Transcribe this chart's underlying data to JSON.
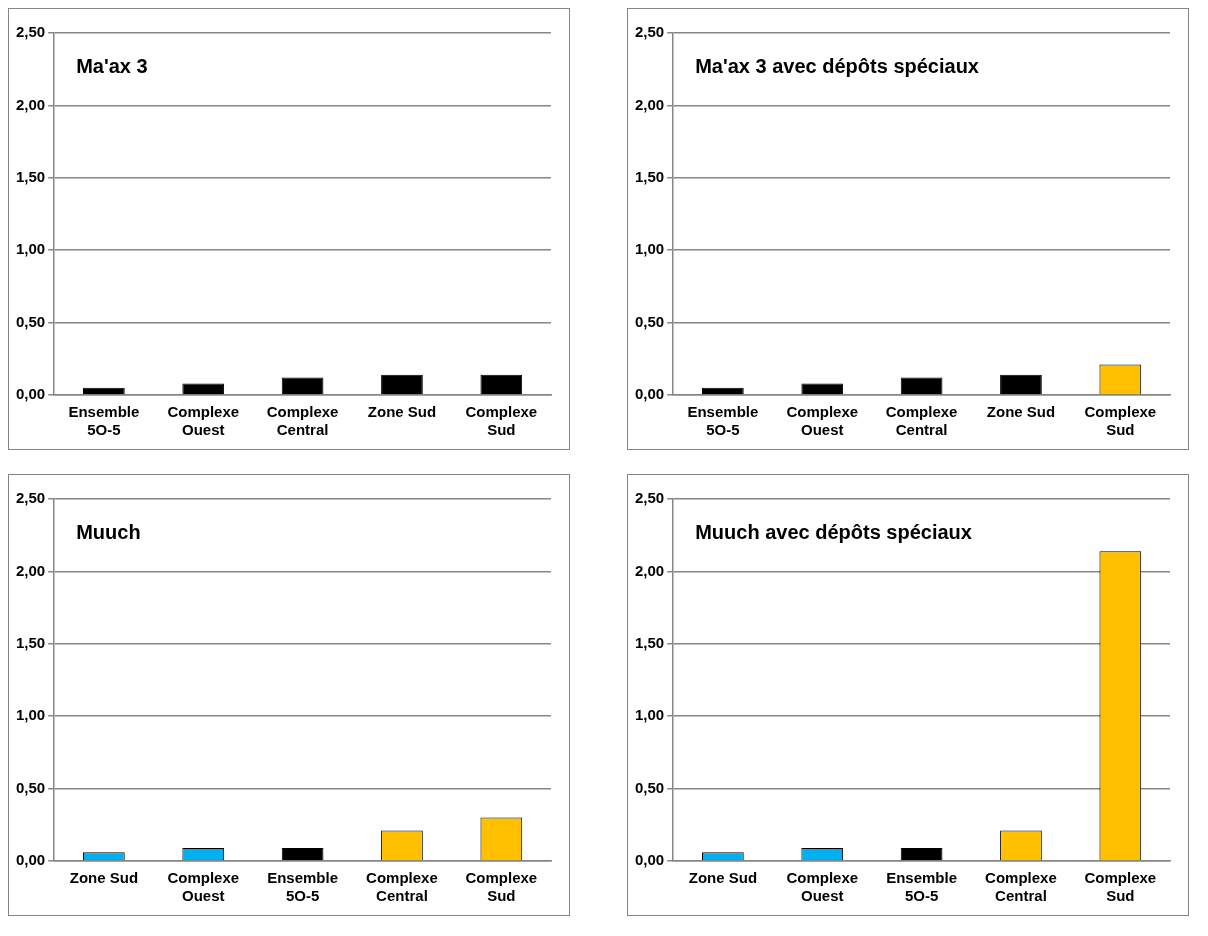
{
  "chart_data": [
    {
      "type": "bar",
      "title": "Ma'ax 3",
      "categories": [
        "Ensemble 5O-5",
        "Complexe Ouest",
        "Complexe Central",
        "Zone Sud",
        "Complexe Sud"
      ],
      "values": [
        0.05,
        0.08,
        0.12,
        0.14,
        0.14
      ],
      "colors": [
        "#000000",
        "#000000",
        "#000000",
        "#000000",
        "#000000"
      ],
      "ylim": [
        0,
        2.5
      ],
      "yticks": [
        {
          "value": 0,
          "label": "0,00"
        },
        {
          "value": 0.5,
          "label": "0,50"
        },
        {
          "value": 1,
          "label": "1,00"
        },
        {
          "value": 1.5,
          "label": "1,50"
        },
        {
          "value": 2,
          "label": "2,00"
        },
        {
          "value": 2.5,
          "label": "2,50"
        }
      ],
      "grid": "y"
    },
    {
      "type": "bar",
      "title": "Ma'ax 3 avec dépôts spéciaux",
      "categories": [
        "Ensemble 5O-5",
        "Complexe Ouest",
        "Complexe Central",
        "Zone Sud",
        "Complexe Sud"
      ],
      "values": [
        0.05,
        0.08,
        0.12,
        0.14,
        0.21
      ],
      "colors": [
        "#000000",
        "#000000",
        "#000000",
        "#000000",
        "#ffc000"
      ],
      "ylim": [
        0,
        2.5
      ],
      "yticks": [
        {
          "value": 0,
          "label": "0,00"
        },
        {
          "value": 0.5,
          "label": "0,50"
        },
        {
          "value": 1,
          "label": "1,00"
        },
        {
          "value": 1.5,
          "label": "1,50"
        },
        {
          "value": 2,
          "label": "2,00"
        },
        {
          "value": 2.5,
          "label": "2,50"
        }
      ],
      "grid": "y"
    },
    {
      "type": "bar",
      "title": "Muuch",
      "categories": [
        "Zone Sud",
        "Complexe Ouest",
        "Ensemble 5O-5",
        "Complexe Central",
        "Complexe Sud"
      ],
      "values": [
        0.06,
        0.09,
        0.09,
        0.21,
        0.3
      ],
      "colors": [
        "#00b0f0",
        "#00b0f0",
        "#000000",
        "#ffc000",
        "#ffc000"
      ],
      "ylim": [
        0,
        2.5
      ],
      "yticks": [
        {
          "value": 0,
          "label": "0,00"
        },
        {
          "value": 0.5,
          "label": "0,50"
        },
        {
          "value": 1,
          "label": "1,00"
        },
        {
          "value": 1.5,
          "label": "1,50"
        },
        {
          "value": 2,
          "label": "2,00"
        },
        {
          "value": 2.5,
          "label": "2,50"
        }
      ],
      "grid": "y"
    },
    {
      "type": "bar",
      "title": "Muuch avec dépôts spéciaux",
      "categories": [
        "Zone Sud",
        "Complexe Ouest",
        "Ensemble 5O-5",
        "Complexe Central",
        "Complexe Sud"
      ],
      "values": [
        0.06,
        0.09,
        0.09,
        0.21,
        2.14
      ],
      "colors": [
        "#00b0f0",
        "#00b0f0",
        "#000000",
        "#ffc000",
        "#ffc000"
      ],
      "ylim": [
        0,
        2.5
      ],
      "yticks": [
        {
          "value": 0,
          "label": "0,00"
        },
        {
          "value": 0.5,
          "label": "0,50"
        },
        {
          "value": 1,
          "label": "1,00"
        },
        {
          "value": 1.5,
          "label": "1,50"
        },
        {
          "value": 2,
          "label": "2,00"
        },
        {
          "value": 2.5,
          "label": "2,50"
        }
      ],
      "grid": "y"
    }
  ]
}
